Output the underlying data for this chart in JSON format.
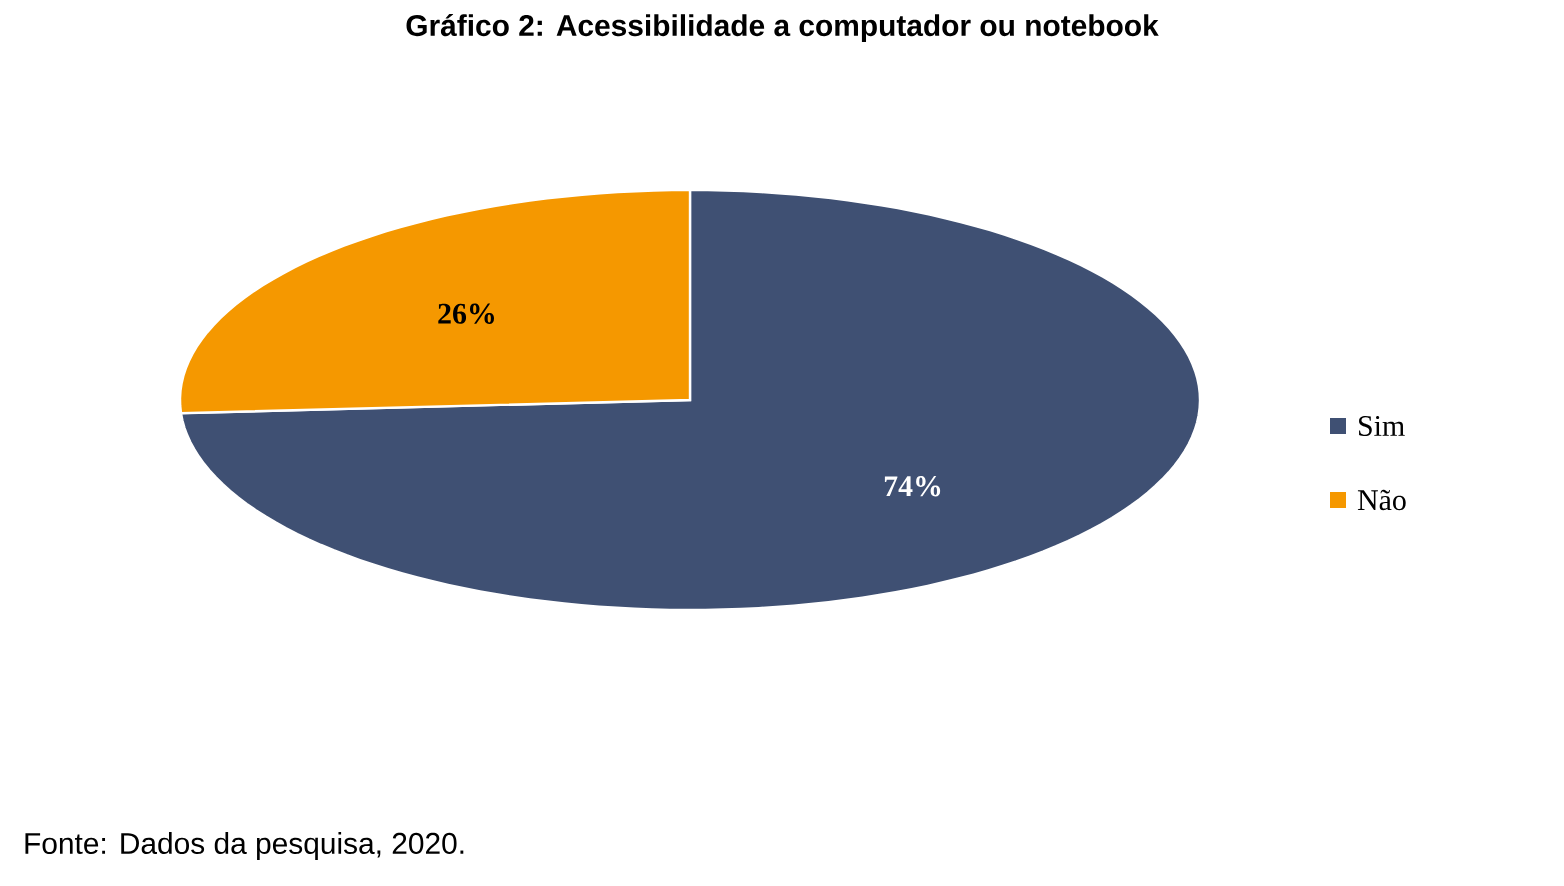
{
  "chart_data": {
    "type": "pie",
    "title": "Gráfico 2: Acessibilidade a computador ou notebook",
    "categories": [
      "Sim",
      "Não"
    ],
    "values": [
      74,
      26
    ],
    "colors": [
      "#3f5073",
      "#f59800"
    ],
    "value_labels": [
      "74%",
      "26%"
    ],
    "legend": "right",
    "annotations": [
      "Fonte: Dados da pesquisa, 2020."
    ]
  }
}
